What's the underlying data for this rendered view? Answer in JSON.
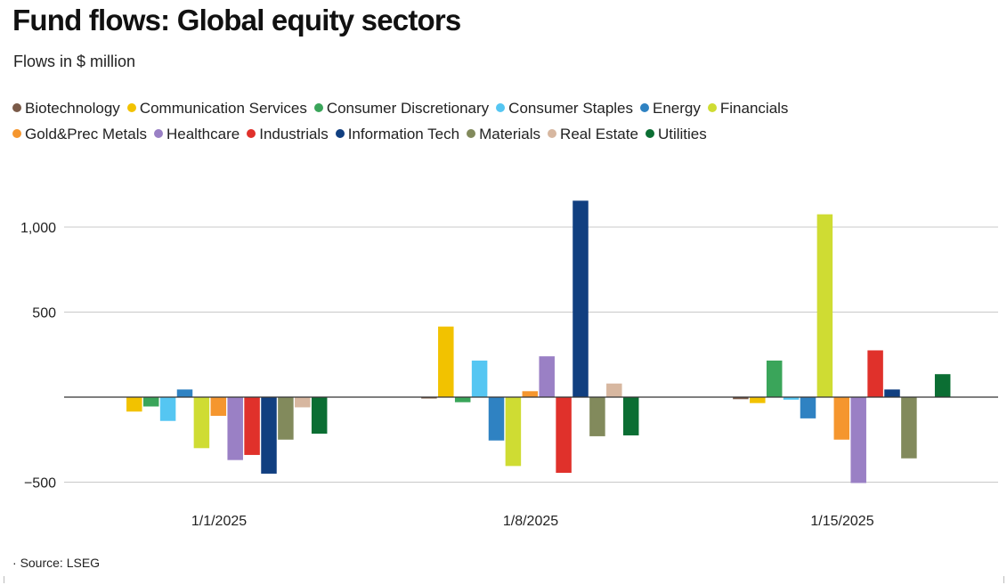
{
  "chart_data": {
    "type": "bar",
    "title": "Fund flows: Global equity sectors",
    "subtitle": "Flows in $ million",
    "source": "Source: LSEG",
    "categories": [
      "1/1/2025",
      "1/8/2025",
      "1/15/2025"
    ],
    "ylim": [
      -500,
      1150
    ],
    "yticks": [
      -500,
      500,
      1000
    ],
    "ytick_labels": [
      "−500",
      "500",
      "1,000"
    ],
    "series": [
      {
        "name": "Biotechnology",
        "color": "#7a5a48",
        "values": [
          0,
          -8,
          -12
        ]
      },
      {
        "name": "Communication Services",
        "color": "#f2c200",
        "values": [
          -85,
          415,
          -35
        ]
      },
      {
        "name": "Consumer Discretionary",
        "color": "#3aa55a",
        "values": [
          -55,
          -30,
          215
        ]
      },
      {
        "name": "Consumer Staples",
        "color": "#55c6f2",
        "values": [
          -140,
          215,
          -15
        ]
      },
      {
        "name": "Energy",
        "color": "#2f82c2",
        "values": [
          45,
          -255,
          -125
        ]
      },
      {
        "name": "Financials",
        "color": "#cfdc33",
        "values": [
          -300,
          -405,
          1075
        ]
      },
      {
        "name": "Gold&Prec Metals",
        "color": "#f5962e",
        "values": [
          -110,
          35,
          -250
        ]
      },
      {
        "name": "Healthcare",
        "color": "#9a80c5",
        "values": [
          -370,
          240,
          -505
        ]
      },
      {
        "name": "Industrials",
        "color": "#e0312b",
        "values": [
          -340,
          -445,
          275
        ]
      },
      {
        "name": "Information Tech",
        "color": "#113f80",
        "values": [
          -450,
          1155,
          45
        ]
      },
      {
        "name": "Materials",
        "color": "#828a5c",
        "values": [
          -250,
          -230,
          -360
        ]
      },
      {
        "name": "Real Estate",
        "color": "#d7b7a0",
        "values": [
          -60,
          80,
          0
        ]
      },
      {
        "name": "Utilities",
        "color": "#0b6e33",
        "values": [
          -215,
          -225,
          135
        ]
      }
    ]
  }
}
